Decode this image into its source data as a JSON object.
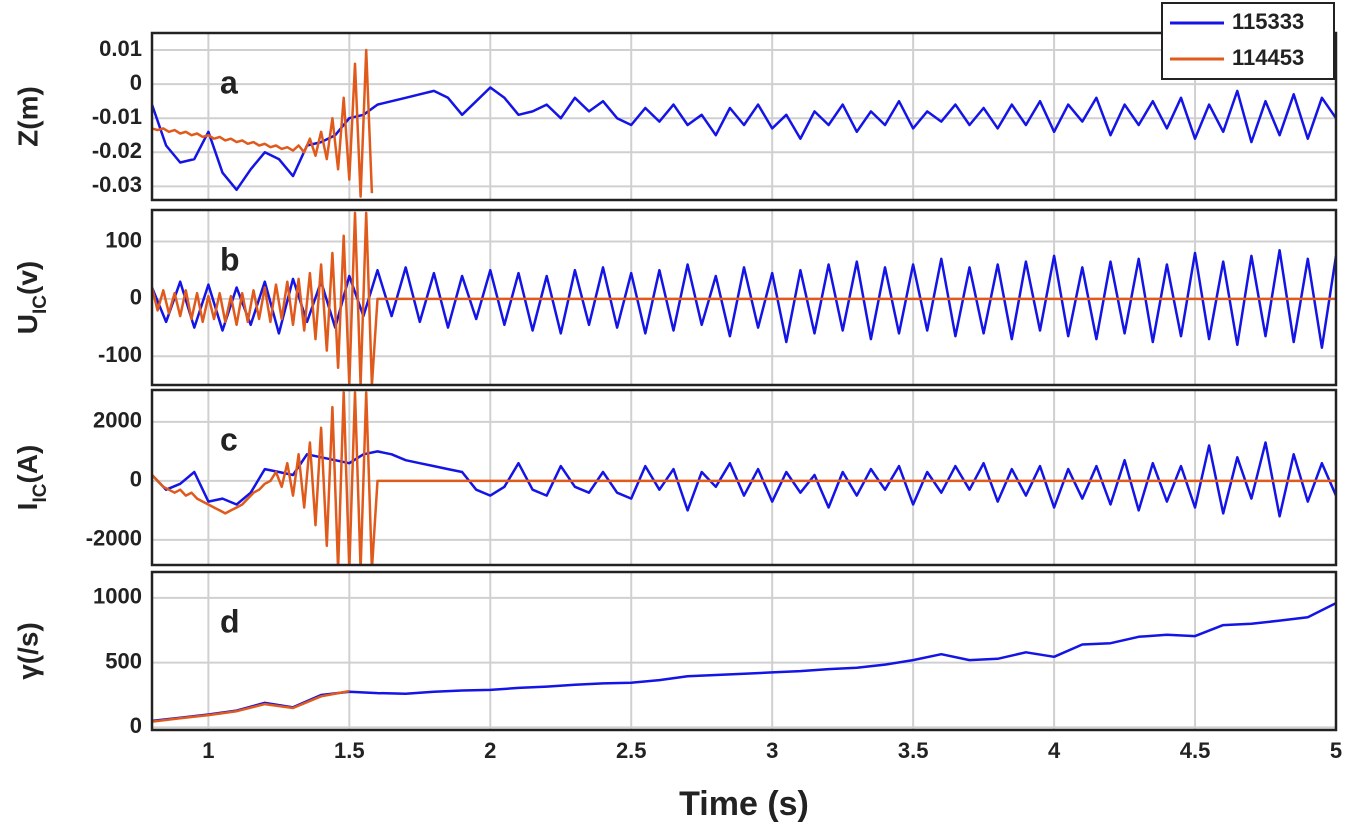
{
  "chart_data": [
    {
      "type": "line",
      "ylabel": "Z(m)",
      "annotation": "a",
      "legend": "upper right",
      "grid": true,
      "xlim": [
        0.8,
        5
      ],
      "xticks": [
        1,
        1.5,
        2,
        2.5,
        3,
        3.5,
        4,
        4.5,
        5
      ],
      "ylim": [
        -0.034,
        0.015
      ],
      "yticks": [
        -0.03,
        -0.02,
        -0.01,
        0,
        0.01
      ],
      "series": [
        {
          "name": "115333",
          "color": "#1414e6",
          "x": [
            0.8,
            0.85,
            0.9,
            0.95,
            1,
            1.05,
            1.1,
            1.15,
            1.2,
            1.25,
            1.3,
            1.35,
            1.4,
            1.45,
            1.5,
            1.55,
            1.6,
            1.65,
            1.7,
            1.75,
            1.8,
            1.85,
            1.9,
            1.95,
            2,
            2.05,
            2.1,
            2.15,
            2.2,
            2.25,
            2.3,
            2.35,
            2.4,
            2.45,
            2.5,
            2.55,
            2.6,
            2.65,
            2.7,
            2.75,
            2.8,
            2.85,
            2.9,
            2.95,
            3,
            3.05,
            3.1,
            3.15,
            3.2,
            3.25,
            3.3,
            3.35,
            3.4,
            3.45,
            3.5,
            3.55,
            3.6,
            3.65,
            3.7,
            3.75,
            3.8,
            3.85,
            3.9,
            3.95,
            4,
            4.05,
            4.1,
            4.15,
            4.2,
            4.25,
            4.3,
            4.35,
            4.4,
            4.45,
            4.5,
            4.55,
            4.6,
            4.65,
            4.7,
            4.75,
            4.8,
            4.85,
            4.9,
            4.95,
            5
          ],
          "values": [
            -0.006,
            -0.018,
            -0.023,
            -0.022,
            -0.014,
            -0.026,
            -0.031,
            -0.025,
            -0.02,
            -0.022,
            -0.027,
            -0.018,
            -0.017,
            -0.015,
            -0.01,
            -0.009,
            -0.006,
            -0.005,
            -0.004,
            -0.003,
            -0.002,
            -0.004,
            -0.009,
            -0.005,
            -0.001,
            -0.004,
            -0.009,
            -0.008,
            -0.006,
            -0.01,
            -0.004,
            -0.008,
            -0.005,
            -0.01,
            -0.012,
            -0.007,
            -0.011,
            -0.006,
            -0.012,
            -0.009,
            -0.015,
            -0.007,
            -0.012,
            -0.006,
            -0.013,
            -0.009,
            -0.016,
            -0.008,
            -0.012,
            -0.006,
            -0.014,
            -0.008,
            -0.012,
            -0.005,
            -0.013,
            -0.008,
            -0.011,
            -0.006,
            -0.012,
            -0.007,
            -0.013,
            -0.006,
            -0.012,
            -0.005,
            -0.014,
            -0.006,
            -0.011,
            -0.004,
            -0.015,
            -0.006,
            -0.012,
            -0.005,
            -0.013,
            -0.004,
            -0.016,
            -0.006,
            -0.014,
            -0.002,
            -0.017,
            -0.005,
            -0.015,
            -0.003,
            -0.016,
            -0.004,
            -0.01
          ]
        },
        {
          "name": "114453",
          "color": "#e05a1c",
          "x": [
            0.8,
            0.82,
            0.84,
            0.86,
            0.88,
            0.9,
            0.92,
            0.94,
            0.96,
            0.98,
            1,
            1.02,
            1.04,
            1.06,
            1.08,
            1.1,
            1.12,
            1.14,
            1.16,
            1.18,
            1.2,
            1.22,
            1.24,
            1.26,
            1.28,
            1.3,
            1.32,
            1.34,
            1.36,
            1.38,
            1.4,
            1.42,
            1.44,
            1.46,
            1.48,
            1.5,
            1.52,
            1.54,
            1.56,
            1.58
          ],
          "values": [
            -0.013,
            -0.0135,
            -0.013,
            -0.014,
            -0.0135,
            -0.0145,
            -0.014,
            -0.015,
            -0.0145,
            -0.0155,
            -0.015,
            -0.016,
            -0.0155,
            -0.0165,
            -0.016,
            -0.017,
            -0.0165,
            -0.0175,
            -0.017,
            -0.018,
            -0.0175,
            -0.0185,
            -0.018,
            -0.019,
            -0.0185,
            -0.0195,
            -0.018,
            -0.02,
            -0.016,
            -0.021,
            -0.014,
            -0.022,
            -0.01,
            -0.025,
            -0.004,
            -0.028,
            0.006,
            -0.033,
            0.01,
            -0.032
          ]
        }
      ]
    },
    {
      "type": "line",
      "ylabel": [
        "U",
        "IC",
        "(v)"
      ],
      "annotation": "b",
      "grid": true,
      "xlim": [
        0.8,
        5
      ],
      "xticks": [
        1,
        1.5,
        2,
        2.5,
        3,
        3.5,
        4,
        4.5,
        5
      ],
      "ylim": [
        -150,
        155
      ],
      "yticks": [
        -100,
        0,
        100
      ],
      "series": [
        {
          "name": "115333",
          "color": "#1414e6",
          "x": [
            0.8,
            0.85,
            0.9,
            0.95,
            1,
            1.05,
            1.1,
            1.15,
            1.2,
            1.25,
            1.3,
            1.35,
            1.4,
            1.45,
            1.5,
            1.55,
            1.6,
            1.65,
            1.7,
            1.75,
            1.8,
            1.85,
            1.9,
            1.95,
            2,
            2.05,
            2.1,
            2.15,
            2.2,
            2.25,
            2.3,
            2.35,
            2.4,
            2.45,
            2.5,
            2.55,
            2.6,
            2.65,
            2.7,
            2.75,
            2.8,
            2.85,
            2.9,
            2.95,
            3,
            3.05,
            3.1,
            3.15,
            3.2,
            3.25,
            3.3,
            3.35,
            3.4,
            3.45,
            3.5,
            3.55,
            3.6,
            3.65,
            3.7,
            3.75,
            3.8,
            3.85,
            3.9,
            3.95,
            4,
            4.05,
            4.1,
            4.15,
            4.2,
            4.25,
            4.3,
            4.35,
            4.4,
            4.45,
            4.5,
            4.55,
            4.6,
            4.65,
            4.7,
            4.75,
            4.8,
            4.85,
            4.9,
            4.95,
            5
          ],
          "values": [
            20,
            -40,
            30,
            -50,
            25,
            -55,
            20,
            -45,
            30,
            -60,
            35,
            -40,
            30,
            -50,
            40,
            -30,
            50,
            -30,
            55,
            -40,
            45,
            -50,
            40,
            -35,
            50,
            -45,
            45,
            -55,
            40,
            -60,
            50,
            -45,
            55,
            -50,
            45,
            -60,
            50,
            -55,
            60,
            -45,
            40,
            -65,
            55,
            -50,
            45,
            -75,
            50,
            -60,
            60,
            -55,
            65,
            -70,
            55,
            -60,
            60,
            -55,
            70,
            -65,
            55,
            -60,
            60,
            -70,
            65,
            -55,
            75,
            -65,
            55,
            -70,
            65,
            -60,
            70,
            -75,
            60,
            -65,
            80,
            -70,
            65,
            -80,
            75,
            -65,
            85,
            -75,
            70,
            -85,
            75
          ]
        },
        {
          "name": "114453",
          "color": "#e05a1c",
          "x": [
            0.8,
            0.82,
            0.84,
            0.86,
            0.88,
            0.9,
            0.92,
            0.94,
            0.96,
            0.98,
            1,
            1.02,
            1.04,
            1.06,
            1.08,
            1.1,
            1.12,
            1.14,
            1.16,
            1.18,
            1.2,
            1.22,
            1.24,
            1.26,
            1.28,
            1.3,
            1.32,
            1.34,
            1.36,
            1.38,
            1.4,
            1.42,
            1.44,
            1.46,
            1.48,
            1.5,
            1.52,
            1.54,
            1.56,
            1.58,
            1.6,
            5
          ],
          "values": [
            20,
            -20,
            15,
            -25,
            10,
            -30,
            15,
            -35,
            10,
            -40,
            5,
            -35,
            10,
            -40,
            5,
            -45,
            10,
            -40,
            15,
            -35,
            20,
            -40,
            25,
            -35,
            30,
            -45,
            35,
            -55,
            45,
            -70,
            60,
            -90,
            80,
            -120,
            110,
            -150,
            150,
            -150,
            150,
            -150,
            0,
            0
          ]
        }
      ]
    },
    {
      "type": "line",
      "ylabel": [
        "I",
        "IC",
        "(A)"
      ],
      "annotation": "c",
      "grid": true,
      "xlim": [
        0.8,
        5
      ],
      "xticks": [
        1,
        1.5,
        2,
        2.5,
        3,
        3.5,
        4,
        4.5,
        5
      ],
      "ylim": [
        -2850,
        3080
      ],
      "yticks": [
        -2000,
        0,
        2000
      ],
      "series": [
        {
          "name": "115333",
          "color": "#1414e6",
          "x": [
            0.8,
            0.85,
            0.9,
            0.95,
            1,
            1.05,
            1.1,
            1.15,
            1.2,
            1.25,
            1.3,
            1.35,
            1.4,
            1.45,
            1.5,
            1.55,
            1.6,
            1.65,
            1.7,
            1.75,
            1.8,
            1.85,
            1.9,
            1.95,
            2,
            2.05,
            2.1,
            2.15,
            2.2,
            2.25,
            2.3,
            2.35,
            2.4,
            2.45,
            2.5,
            2.55,
            2.6,
            2.65,
            2.7,
            2.75,
            2.8,
            2.85,
            2.9,
            2.95,
            3,
            3.05,
            3.1,
            3.15,
            3.2,
            3.25,
            3.3,
            3.35,
            3.4,
            3.45,
            3.5,
            3.55,
            3.6,
            3.65,
            3.7,
            3.75,
            3.8,
            3.85,
            3.9,
            3.95,
            4,
            4.05,
            4.1,
            4.15,
            4.2,
            4.25,
            4.3,
            4.35,
            4.4,
            4.45,
            4.5,
            4.55,
            4.6,
            4.65,
            4.7,
            4.75,
            4.8,
            4.85,
            4.9,
            4.95,
            5
          ],
          "values": [
            200,
            -300,
            -100,
            300,
            -700,
            -600,
            -800,
            -400,
            400,
            300,
            200,
            900,
            800,
            700,
            600,
            900,
            1000,
            900,
            700,
            600,
            500,
            400,
            300,
            -300,
            -500,
            -200,
            600,
            -300,
            -500,
            500,
            -200,
            -400,
            300,
            -400,
            -600,
            500,
            -300,
            400,
            -1000,
            300,
            -200,
            600,
            -500,
            400,
            -700,
            300,
            -400,
            200,
            -900,
            300,
            -500,
            400,
            -300,
            500,
            -800,
            300,
            -400,
            500,
            -300,
            600,
            -700,
            400,
            -500,
            500,
            -900,
            400,
            -600,
            500,
            -800,
            700,
            -1000,
            600,
            -700,
            500,
            -900,
            1200,
            -1100,
            800,
            -600,
            1300,
            -1200,
            900,
            -700,
            600,
            -500
          ]
        },
        {
          "name": "114453",
          "color": "#e05a1c",
          "x": [
            0.8,
            0.82,
            0.84,
            0.86,
            0.88,
            0.9,
            0.92,
            0.94,
            0.96,
            0.98,
            1,
            1.02,
            1.04,
            1.06,
            1.08,
            1.1,
            1.12,
            1.14,
            1.16,
            1.18,
            1.2,
            1.22,
            1.24,
            1.26,
            1.28,
            1.3,
            1.32,
            1.34,
            1.36,
            1.38,
            1.4,
            1.42,
            1.44,
            1.46,
            1.48,
            1.5,
            1.52,
            1.54,
            1.56,
            1.58,
            1.6,
            5
          ],
          "values": [
            200,
            0,
            -200,
            -300,
            -400,
            -300,
            -500,
            -400,
            -600,
            -700,
            -800,
            -900,
            -1000,
            -1100,
            -1000,
            -900,
            -800,
            -600,
            -400,
            -300,
            -100,
            0,
            300,
            -200,
            600,
            -500,
            900,
            -900,
            1300,
            -1500,
            1800,
            -2200,
            2500,
            -3000,
            3000,
            -3000,
            3000,
            -3000,
            3000,
            -3000,
            0,
            0
          ]
        }
      ]
    },
    {
      "type": "line",
      "ylabel": "γ(/s)",
      "annotation": "d",
      "xlabel": "Time (s)",
      "grid": true,
      "xlim": [
        0.8,
        5
      ],
      "xticks": [
        1,
        1.5,
        2,
        2.5,
        3,
        3.5,
        4,
        4.5,
        5
      ],
      "ylim": [
        -20,
        1200
      ],
      "yticks": [
        0,
        500,
        1000
      ],
      "series": [
        {
          "name": "115333",
          "color": "#1414e6",
          "x": [
            0.8,
            0.9,
            1,
            1.1,
            1.2,
            1.3,
            1.4,
            1.5,
            1.6,
            1.7,
            1.8,
            1.9,
            2,
            2.1,
            2.2,
            2.3,
            2.4,
            2.5,
            2.6,
            2.7,
            2.8,
            2.9,
            3,
            3.1,
            3.2,
            3.3,
            3.4,
            3.5,
            3.6,
            3.7,
            3.8,
            3.9,
            4,
            4.1,
            4.2,
            4.3,
            4.4,
            4.5,
            4.6,
            4.7,
            4.8,
            4.9,
            5
          ],
          "values": [
            50,
            75,
            100,
            130,
            190,
            155,
            250,
            275,
            265,
            260,
            275,
            285,
            290,
            305,
            315,
            330,
            340,
            345,
            365,
            395,
            405,
            415,
            425,
            435,
            450,
            460,
            485,
            520,
            565,
            520,
            530,
            580,
            545,
            640,
            650,
            700,
            715,
            705,
            790,
            800,
            825,
            850,
            960
          ]
        },
        {
          "name": "114453",
          "color": "#e05a1c",
          "x": [
            0.8,
            0.9,
            1,
            1.1,
            1.2,
            1.3,
            1.4,
            1.5
          ],
          "values": [
            45,
            70,
            95,
            125,
            180,
            150,
            240,
            280
          ]
        }
      ]
    }
  ]
}
